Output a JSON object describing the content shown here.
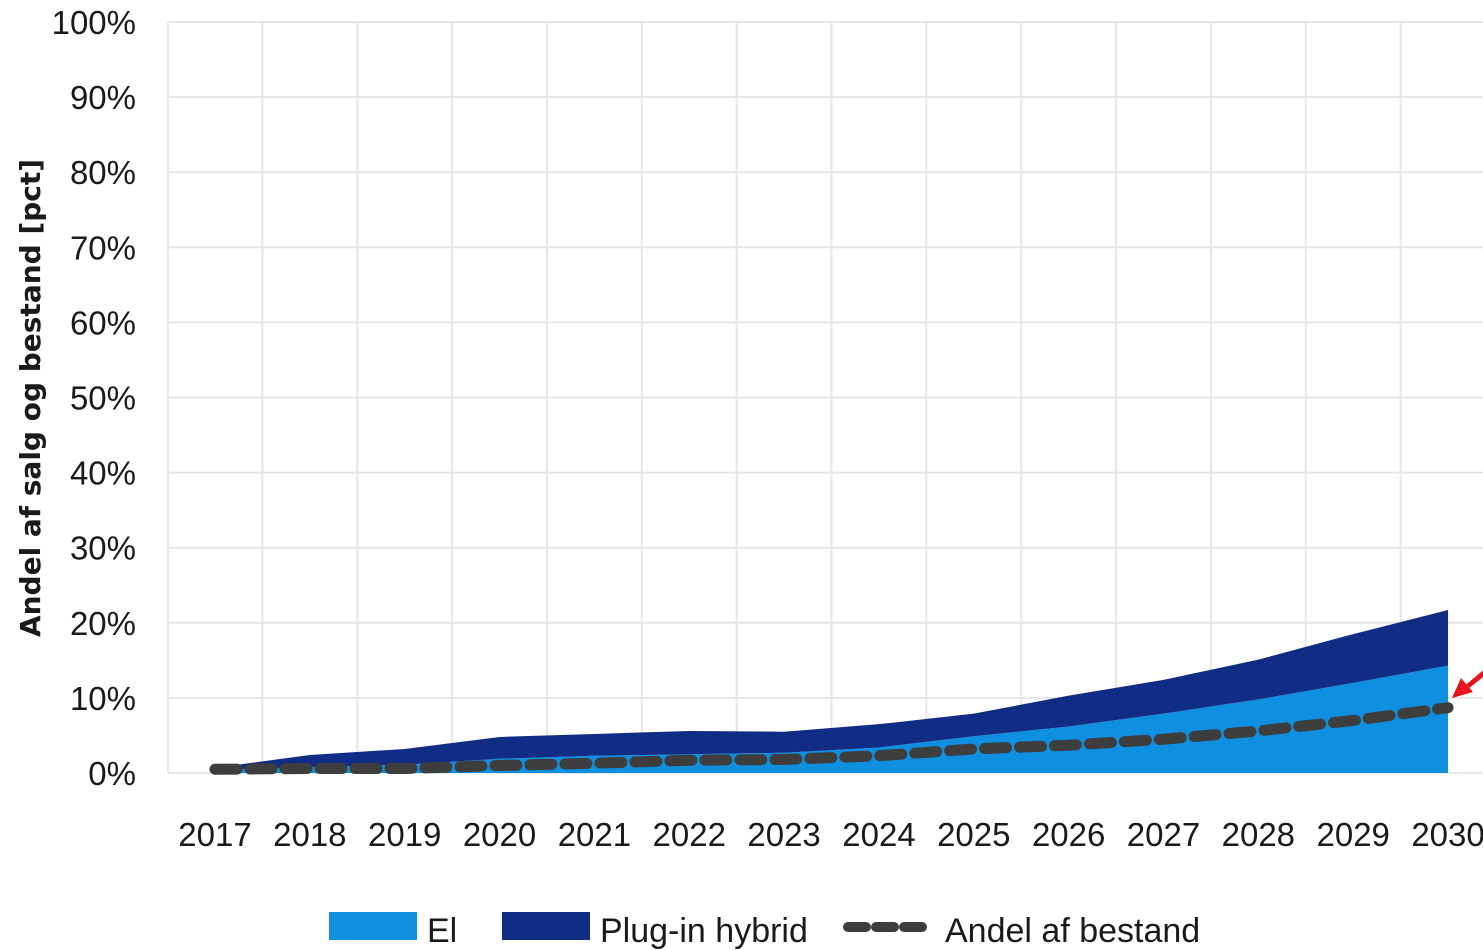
{
  "chart_data": {
    "type": "area",
    "title": "",
    "xlabel": "",
    "ylabel": "Andel af salg og bestand [pct]",
    "x": [
      "2017",
      "2018",
      "2019",
      "2020",
      "2021",
      "2022",
      "2023",
      "2024",
      "2025",
      "2026",
      "2027",
      "2028",
      "2029",
      "2030"
    ],
    "ylim": [
      0,
      100
    ],
    "yticks": [
      "0%",
      "10%",
      "20%",
      "30%",
      "40%",
      "50%",
      "60%",
      "70%",
      "80%",
      "90%",
      "100%"
    ],
    "stacked": true,
    "grid": true,
    "legend_position": "bottom",
    "series": [
      {
        "name": "El",
        "kind": "area",
        "color": "#0f8fe0",
        "values": [
          0.4,
          0.8,
          1.1,
          1.9,
          2.3,
          2.5,
          2.7,
          3.4,
          4.9,
          6.2,
          7.9,
          9.8,
          12.0,
          14.3
        ]
      },
      {
        "name": "Plug-in hybrid",
        "kind": "area",
        "color": "#102c84",
        "values": [
          0.3,
          1.6,
          2.1,
          2.9,
          2.9,
          3.1,
          2.8,
          3.1,
          3.0,
          4.1,
          4.5,
          5.3,
          6.5,
          7.4
        ]
      },
      {
        "name": "Andel af bestand",
        "kind": "dashed-line",
        "color": "#3d3d3d",
        "values": [
          0.5,
          0.6,
          0.6,
          1.0,
          1.3,
          1.7,
          1.8,
          2.3,
          3.2,
          3.7,
          4.5,
          5.6,
          7.0,
          8.7
        ]
      }
    ],
    "annotation_arrow_color": "#e8141b"
  }
}
